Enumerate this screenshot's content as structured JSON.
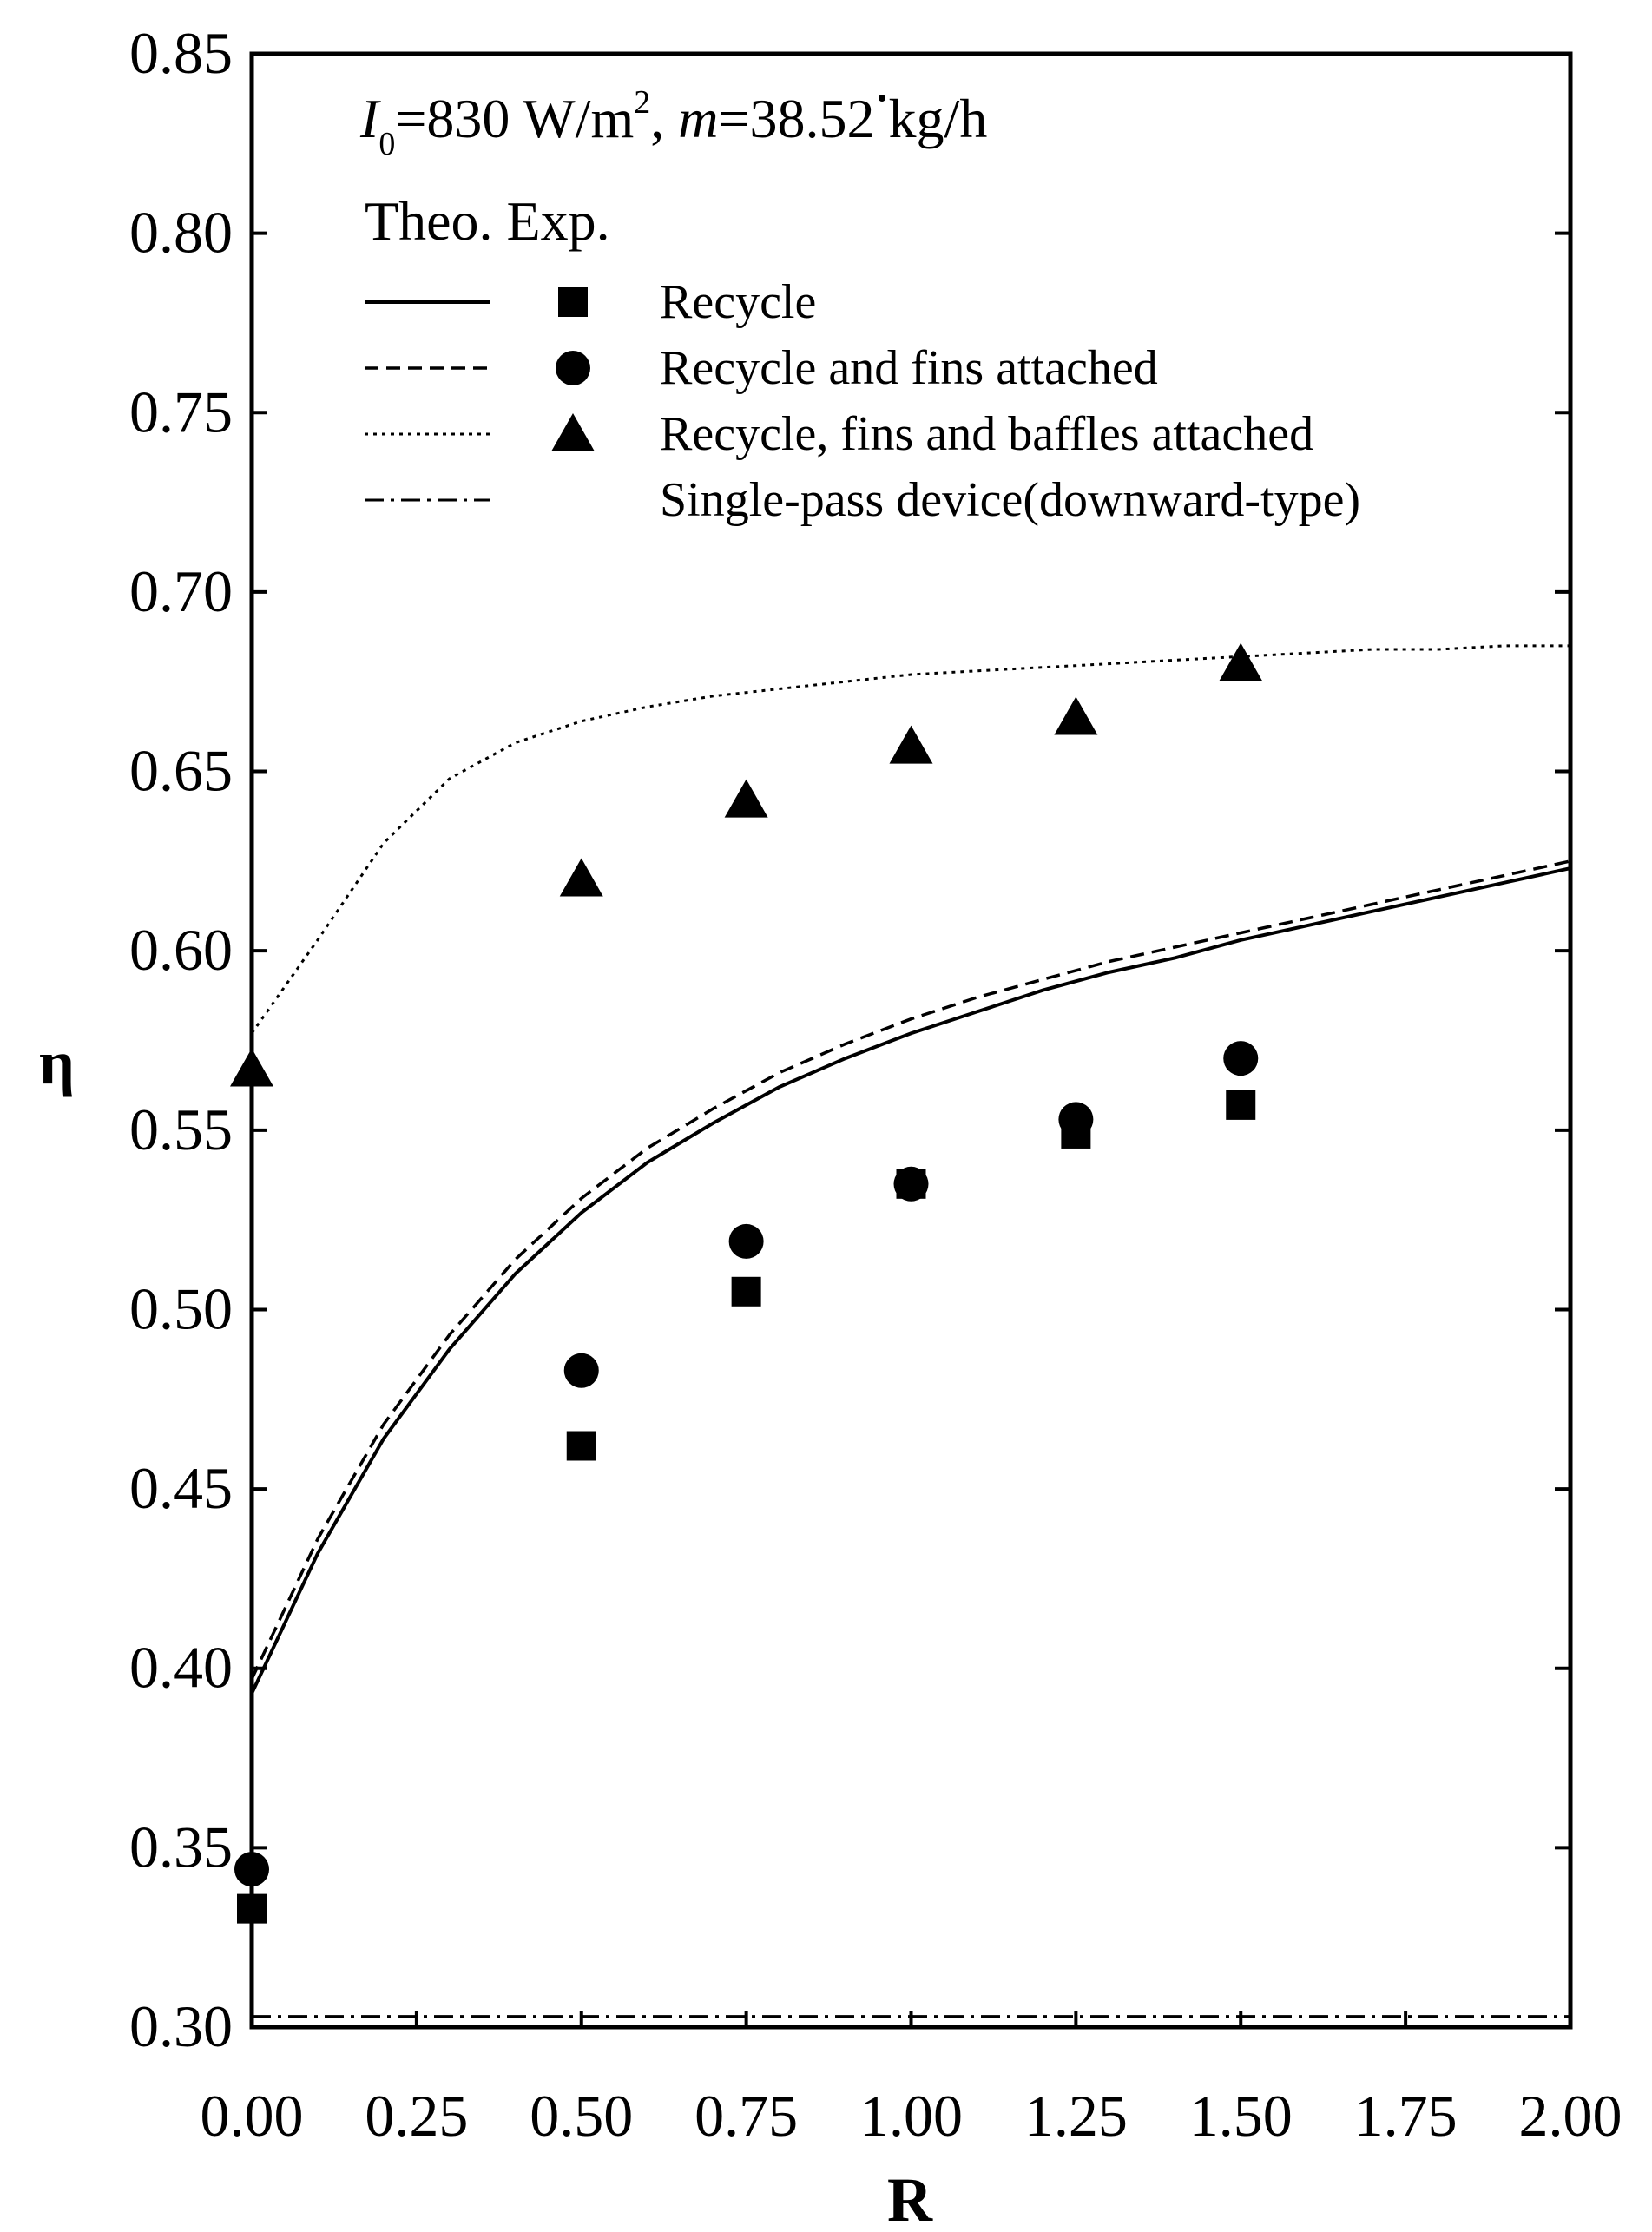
{
  "chart_data": {
    "type": "line",
    "title": "",
    "xlabel": "R",
    "ylabel": "η",
    "xlim": [
      0,
      2
    ],
    "ylim": [
      0.3,
      0.85
    ],
    "x_ticks": [
      "0.00",
      "0.25",
      "0.50",
      "0.75",
      "1.00",
      "1.25",
      "1.50",
      "1.75",
      "2.00"
    ],
    "y_ticks": [
      "0.30",
      "0.35",
      "0.40",
      "0.45",
      "0.50",
      "0.55",
      "0.60",
      "0.65",
      "0.70",
      "0.75",
      "0.80",
      "0.85"
    ],
    "conditions": {
      "prefix": "I",
      "subscript": "0",
      "irradiance": "=830 W/m",
      "superscript": "2",
      "separator": ", ",
      "mass_flow_symbol": "m",
      "mass_flow": "=38.52 kg/h"
    },
    "legend_header": "Theo. Exp.",
    "grid": false,
    "series": [
      {
        "name": "Recycle",
        "style": "solid",
        "marker": "square",
        "theory": {
          "x": [
            0,
            0.1,
            0.2,
            0.3,
            0.4,
            0.5,
            0.6,
            0.7,
            0.8,
            0.9,
            1.0,
            1.1,
            1.2,
            1.3,
            1.4,
            1.5,
            1.6,
            1.7,
            1.8,
            1.9,
            2.0
          ],
          "y": [
            0.393,
            0.432,
            0.464,
            0.489,
            0.51,
            0.527,
            0.541,
            0.552,
            0.562,
            0.57,
            0.577,
            0.583,
            0.589,
            0.594,
            0.598,
            0.603,
            0.607,
            0.611,
            0.615,
            0.619,
            0.623
          ]
        },
        "experiment": {
          "x": [
            0,
            0.5,
            0.75,
            1.0,
            1.25,
            1.5
          ],
          "y": [
            0.333,
            0.462,
            0.505,
            0.535,
            0.549,
            0.557
          ]
        }
      },
      {
        "name": "Recycle and fins attached",
        "style": "dashed",
        "marker": "circle",
        "theory": {
          "x": [
            0,
            0.1,
            0.2,
            0.3,
            0.4,
            0.5,
            0.6,
            0.7,
            0.8,
            0.9,
            1.0,
            1.1,
            1.2,
            1.3,
            1.4,
            1.5,
            1.6,
            1.7,
            1.8,
            1.9,
            2.0
          ],
          "y": [
            0.397,
            0.436,
            0.468,
            0.493,
            0.514,
            0.531,
            0.545,
            0.556,
            0.566,
            0.574,
            0.581,
            0.587,
            0.592,
            0.597,
            0.601,
            0.605,
            0.609,
            0.613,
            0.617,
            0.621,
            0.625
          ]
        },
        "experiment": {
          "x": [
            0,
            0.5,
            0.75,
            1.0,
            1.25,
            1.5
          ],
          "y": [
            0.344,
            0.483,
            0.519,
            0.535,
            0.553,
            0.57
          ]
        }
      },
      {
        "name": "Recycle, fins and baffles attached",
        "style": "dotted",
        "marker": "triangle",
        "theory": {
          "x": [
            0,
            0.1,
            0.2,
            0.3,
            0.4,
            0.5,
            0.6,
            0.7,
            0.8,
            0.9,
            1.0,
            1.1,
            1.2,
            1.3,
            1.4,
            1.5,
            1.6,
            1.7,
            1.8,
            1.9,
            2.0
          ],
          "y": [
            0.577,
            0.603,
            0.63,
            0.648,
            0.658,
            0.664,
            0.668,
            0.671,
            0.673,
            0.675,
            0.677,
            0.678,
            0.679,
            0.68,
            0.681,
            0.682,
            0.683,
            0.684,
            0.684,
            0.685,
            0.685
          ]
        },
        "experiment": {
          "x": [
            0,
            0.5,
            0.75,
            1.0,
            1.25,
            1.5
          ],
          "y": [
            0.567,
            0.62,
            0.642,
            0.657,
            0.665,
            0.68
          ]
        }
      },
      {
        "name": "Single-pass device(downward-type)",
        "style": "dashdot",
        "marker": "none",
        "theory": {
          "x": [
            0,
            2.0
          ],
          "y": [
            0.303,
            0.303
          ]
        },
        "experiment": null
      }
    ]
  }
}
